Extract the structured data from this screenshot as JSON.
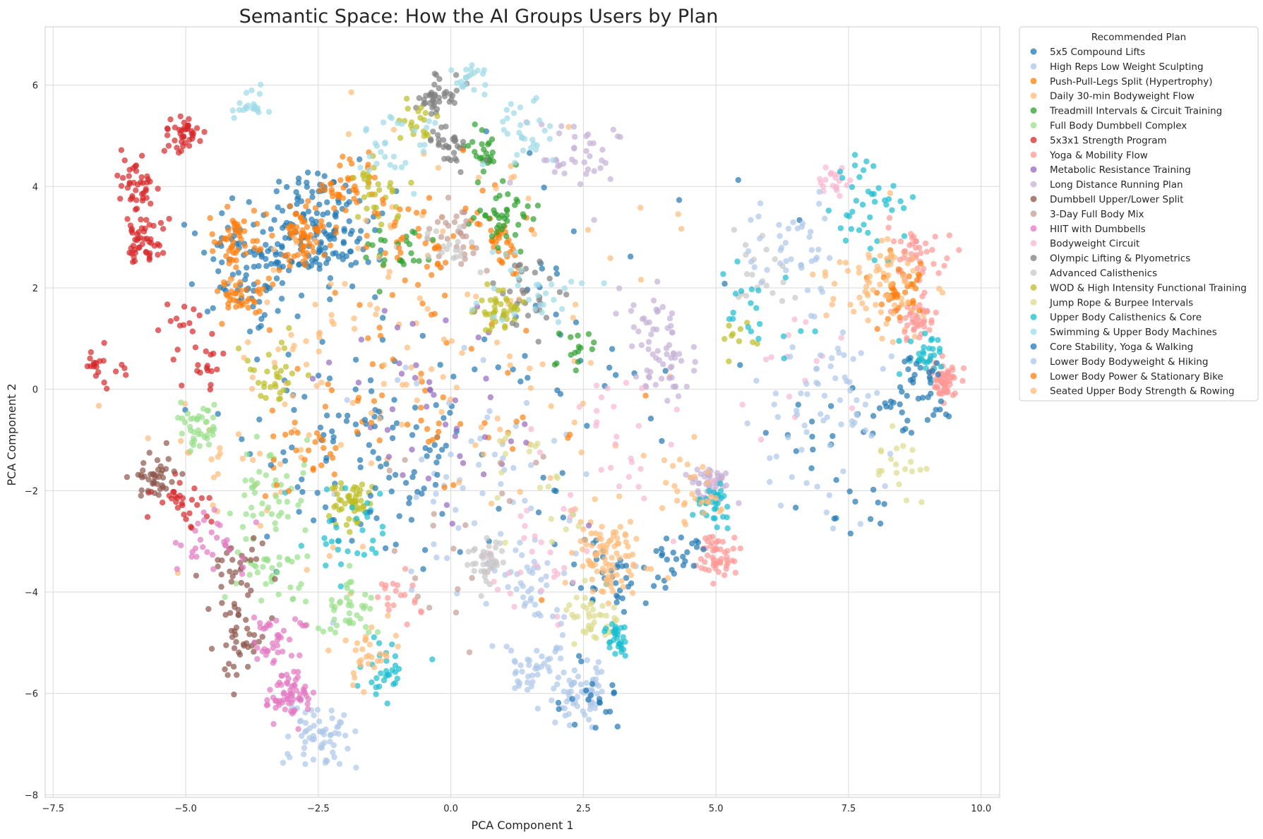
{
  "chart_data": {
    "type": "scatter",
    "title": "Semantic Space: How the AI Groups Users by Plan",
    "xlabel": "PCA Component 1",
    "ylabel": "PCA Component 2",
    "xlim": [
      -7.65,
      10.35
    ],
    "ylim": [
      -8.05,
      7.15
    ],
    "xticks": [
      -7.5,
      -5.0,
      -2.5,
      0.0,
      2.5,
      5.0,
      7.5,
      10.0
    ],
    "xtick_labels": [
      "−7.5",
      "−5.0",
      "−2.5",
      "0.0",
      "2.5",
      "5.0",
      "7.5",
      "10.0"
    ],
    "yticks": [
      -8,
      -6,
      -4,
      -2,
      0,
      2,
      4,
      6
    ],
    "ytick_labels": [
      "−8",
      "−6",
      "−4",
      "−2",
      "0",
      "2",
      "4",
      "6"
    ],
    "grid": true,
    "legend": {
      "title": "Recommended Plan",
      "placement": "outside-upper-right"
    },
    "series": [
      {
        "name": "5x5 Compound Lifts",
        "color": "#1f77b4",
        "clusters": [
          [
            -2.5,
            3.2,
            0.5,
            140
          ],
          [
            -3.8,
            2.5,
            0.5,
            90
          ],
          [
            -2.0,
            -1.0,
            1.2,
            90
          ],
          [
            3.0,
            -3.8,
            0.4,
            40
          ],
          [
            2.0,
            0.5,
            2.0,
            60
          ]
        ]
      },
      {
        "name": "High Reps Low Weight Sculpting",
        "color": "#aec7e8",
        "clusters": [
          [
            2.5,
            -6.0,
            0.25,
            60
          ],
          [
            -2.5,
            -6.8,
            0.3,
            60
          ],
          [
            1.5,
            -5.5,
            0.3,
            40
          ],
          [
            0.5,
            -2.0,
            1.2,
            60
          ],
          [
            1.5,
            -4.0,
            0.4,
            40
          ]
        ]
      },
      {
        "name": "Push-Pull-Legs Split (Hypertrophy)",
        "color": "#ff7f0e",
        "clusters": [
          [
            -2.7,
            3.0,
            0.25,
            60
          ],
          [
            -4.1,
            2.9,
            0.25,
            50
          ],
          [
            -4.0,
            1.8,
            0.25,
            40
          ],
          [
            -2.0,
            4.0,
            0.3,
            40
          ],
          [
            0.9,
            3.0,
            0.3,
            40
          ],
          [
            -0.5,
            0.0,
            1.3,
            50
          ]
        ]
      },
      {
        "name": "Daily 30-min Bodyweight Flow",
        "color": "#ffbb78",
        "clusters": [
          [
            3.0,
            -3.2,
            0.35,
            60
          ],
          [
            0.5,
            1.0,
            1.8,
            100
          ],
          [
            -3.5,
            -1.5,
            1.0,
            40
          ],
          [
            8.0,
            2.0,
            0.6,
            40
          ]
        ]
      },
      {
        "name": "Treadmill Intervals & Circuit Training",
        "color": "#2ca02c",
        "clusters": [
          [
            1.0,
            3.4,
            0.3,
            40
          ],
          [
            0.7,
            4.7,
            0.2,
            25
          ],
          [
            -1.0,
            2.8,
            0.35,
            25
          ],
          [
            2.3,
            0.7,
            0.2,
            15
          ]
        ]
      },
      {
        "name": "Full Body Dumbbell Complex",
        "color": "#98df8a",
        "clusters": [
          [
            -2.0,
            -4.3,
            0.3,
            40
          ],
          [
            -3.3,
            -3.6,
            0.35,
            40
          ],
          [
            -3.5,
            -2.0,
            0.4,
            40
          ],
          [
            -4.7,
            -0.8,
            0.25,
            40
          ]
        ]
      },
      {
        "name": "5x3x1 Strength Program",
        "color": "#d62728",
        "clusters": [
          [
            -5.0,
            5.0,
            0.2,
            40
          ],
          [
            -5.9,
            4.0,
            0.2,
            40
          ],
          [
            -5.8,
            3.0,
            0.2,
            50
          ],
          [
            -6.6,
            0.4,
            0.2,
            20
          ],
          [
            -5.1,
            -2.3,
            0.3,
            30
          ],
          [
            -4.7,
            0.3,
            0.2,
            15
          ],
          [
            -5.0,
            1.3,
            0.3,
            15
          ]
        ]
      },
      {
        "name": "Yoga & Mobility Flow",
        "color": "#ff9896",
        "clusters": [
          [
            9.3,
            0.2,
            0.15,
            60
          ],
          [
            5.0,
            -3.3,
            0.2,
            50
          ],
          [
            8.8,
            1.4,
            0.2,
            40
          ],
          [
            8.8,
            2.7,
            0.25,
            40
          ],
          [
            -1.0,
            -4.2,
            0.3,
            20
          ]
        ]
      },
      {
        "name": "Metabolic Resistance Training",
        "color": "#9467bd",
        "clusters": [
          [
            0.0,
            -0.5,
            1.0,
            30
          ],
          [
            -1.0,
            0.5,
            0.7,
            15
          ]
        ]
      },
      {
        "name": "Long Distance Running Plan",
        "color": "#c5b0d5",
        "clusters": [
          [
            4.9,
            -1.9,
            0.2,
            50
          ],
          [
            4.1,
            0.5,
            0.3,
            40
          ],
          [
            2.5,
            4.5,
            0.4,
            40
          ],
          [
            3.8,
            1.4,
            0.3,
            25
          ]
        ]
      },
      {
        "name": "Dumbbell Upper/Lower Split",
        "color": "#8c564b",
        "clusters": [
          [
            -4.0,
            -5.0,
            0.3,
            40
          ],
          [
            -5.5,
            -1.8,
            0.2,
            40
          ],
          [
            -4.0,
            -3.5,
            0.3,
            30
          ]
        ]
      },
      {
        "name": "3-Day Full Body Mix",
        "color": "#c49c94",
        "clusters": [
          [
            0.1,
            3.0,
            0.3,
            30
          ],
          [
            0.0,
            -2.5,
            1.0,
            20
          ]
        ]
      },
      {
        "name": "HIIT with Dumbbells",
        "color": "#e377c2",
        "clusters": [
          [
            -3.0,
            -6.1,
            0.2,
            60
          ],
          [
            -3.3,
            -5.0,
            0.25,
            40
          ],
          [
            -4.5,
            -3.0,
            0.3,
            30
          ]
        ]
      },
      {
        "name": "Bodyweight Circuit",
        "color": "#f7b6d2",
        "clusters": [
          [
            7.2,
            4.1,
            0.2,
            20
          ],
          [
            3.0,
            -1.0,
            0.8,
            30
          ],
          [
            1.5,
            -3.5,
            0.6,
            30
          ],
          [
            6.5,
            0.3,
            0.5,
            15
          ]
        ]
      },
      {
        "name": "Olympic Lifting & Plyometrics",
        "color": "#7f7f7f",
        "clusters": [
          [
            -0.2,
            5.8,
            0.2,
            40
          ],
          [
            0.0,
            4.8,
            0.2,
            30
          ],
          [
            1.5,
            1.8,
            0.3,
            30
          ]
        ]
      },
      {
        "name": "Advanced Calisthenics",
        "color": "#c7c7c7",
        "clusters": [
          [
            0.7,
            -3.4,
            0.2,
            40
          ],
          [
            0.0,
            2.8,
            0.3,
            20
          ],
          [
            5.8,
            2.3,
            0.3,
            20
          ]
        ]
      },
      {
        "name": "WOD & High Intensity Functional Training",
        "color": "#bcbd22",
        "clusters": [
          [
            -1.9,
            -2.2,
            0.2,
            50
          ],
          [
            0.9,
            1.6,
            0.2,
            40
          ],
          [
            -0.6,
            5.2,
            0.15,
            20
          ],
          [
            -3.2,
            0.3,
            0.3,
            30
          ],
          [
            -1.3,
            4.0,
            0.3,
            30
          ],
          [
            5.4,
            1.0,
            0.2,
            10
          ]
        ]
      },
      {
        "name": "Jump Rope & Burpee Intervals",
        "color": "#dbdb8d",
        "clusters": [
          [
            2.7,
            -4.5,
            0.25,
            40
          ],
          [
            8.5,
            -1.5,
            0.3,
            20
          ],
          [
            1.5,
            -2.0,
            0.5,
            20
          ]
        ]
      },
      {
        "name": "Upper Body Calisthenics & Core",
        "color": "#17becf",
        "clusters": [
          [
            3.1,
            -4.9,
            0.15,
            30
          ],
          [
            4.9,
            -2.3,
            0.2,
            30
          ],
          [
            7.8,
            3.5,
            0.4,
            40
          ],
          [
            9.0,
            0.6,
            0.2,
            30
          ],
          [
            -1.2,
            -5.5,
            0.3,
            30
          ],
          [
            -2.0,
            -2.7,
            0.4,
            30
          ],
          [
            5.8,
            1.5,
            0.5,
            20
          ]
        ]
      },
      {
        "name": "Swimming & Upper Body Machines",
        "color": "#9edae5",
        "clusters": [
          [
            -3.8,
            5.6,
            0.15,
            20
          ],
          [
            0.4,
            6.1,
            0.15,
            20
          ],
          [
            1.5,
            5.0,
            0.3,
            30
          ],
          [
            -1.0,
            4.8,
            0.4,
            30
          ],
          [
            1.5,
            2.0,
            0.6,
            30
          ]
        ]
      },
      {
        "name": "Core Stability, Yoga & Walking",
        "color": "#1f77b4",
        "clusters": [
          [
            8.8,
            -0.2,
            0.4,
            40
          ],
          [
            4.3,
            -3.2,
            0.2,
            20
          ],
          [
            7.5,
            -1.5,
            0.8,
            30
          ],
          [
            -1.3,
            -1.5,
            0.8,
            30
          ],
          [
            2.5,
            -6.1,
            0.3,
            20
          ]
        ]
      },
      {
        "name": "Lower Body Bodyweight & Hiking",
        "color": "#aec7e8",
        "clusters": [
          [
            6.5,
            2.8,
            0.5,
            40
          ],
          [
            7.0,
            -1.0,
            0.8,
            40
          ],
          [
            7.2,
            0.3,
            0.6,
            30
          ]
        ]
      },
      {
        "name": "Lower Body Power & Stationary Bike",
        "color": "#ff7f0e",
        "clusters": [
          [
            8.4,
            1.9,
            0.3,
            40
          ],
          [
            -0.6,
            3.0,
            0.5,
            40
          ],
          [
            -2.5,
            -1.0,
            0.5,
            30
          ]
        ]
      },
      {
        "name": "Seated Upper Body Strength & Rowing",
        "color": "#ffbb78",
        "clusters": [
          [
            8.2,
            2.2,
            0.4,
            40
          ],
          [
            3.0,
            -3.5,
            0.3,
            30
          ],
          [
            -1.5,
            -5.2,
            0.3,
            30
          ],
          [
            4.5,
            -2.0,
            0.4,
            30
          ],
          [
            -2.7,
            1.5,
            0.8,
            30
          ]
        ]
      }
    ]
  }
}
